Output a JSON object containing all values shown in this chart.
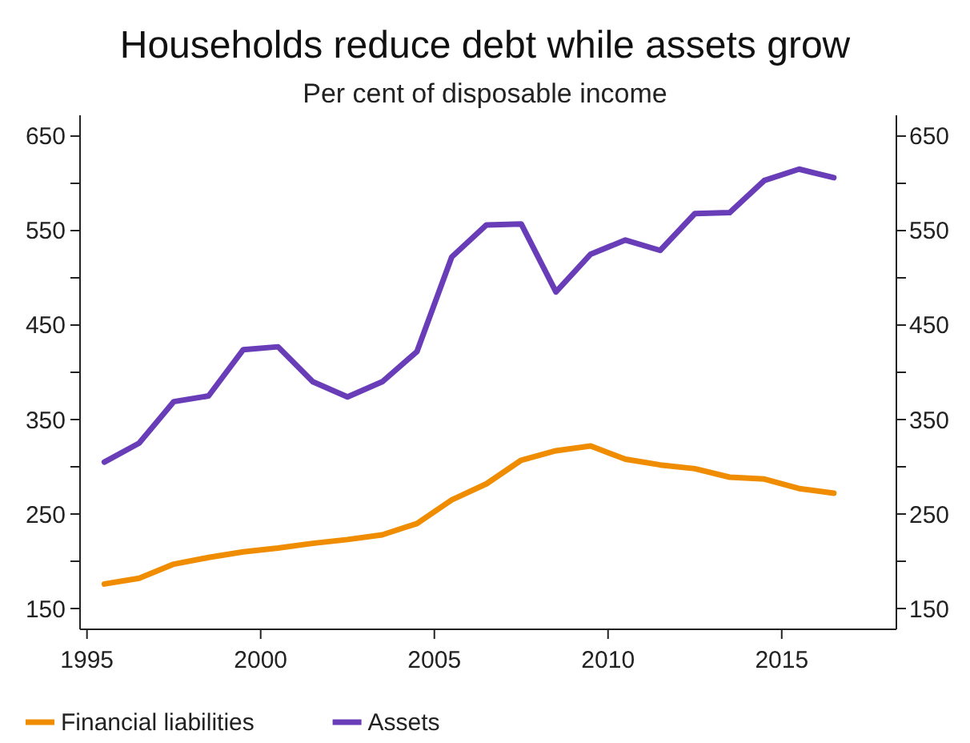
{
  "chart_data": {
    "type": "line",
    "title": "Households reduce debt while assets grow",
    "subtitle": "Per cent of disposable income",
    "x": [
      1995.5,
      1996.5,
      1997.5,
      1998.5,
      1999.5,
      2000.5,
      2001.5,
      2002.5,
      2003.5,
      2004.5,
      2005.5,
      2006.5,
      2007.5,
      2008.5,
      2009.5,
      2010.5,
      2011.5,
      2012.5,
      2013.5,
      2014.5,
      2015.5,
      2016.5
    ],
    "series": [
      {
        "name": "Financial liabilities",
        "color": "#ef8c00",
        "values": [
          176,
          182,
          197,
          204,
          210,
          214,
          219,
          223,
          228,
          240,
          265,
          282,
          307,
          317,
          322,
          308,
          302,
          298,
          289,
          287,
          277,
          272
        ]
      },
      {
        "name": "Assets",
        "color": "#6a3db8",
        "values": [
          305,
          325,
          369,
          375,
          424,
          427,
          390,
          374,
          390,
          422,
          522,
          556,
          557,
          485,
          525,
          540,
          529,
          568,
          569,
          603,
          615,
          606
        ]
      }
    ],
    "xlim": [
      1994.8,
      2018.3
    ],
    "xticks": [
      1995,
      2000,
      2005,
      2010,
      2015
    ],
    "ylim": [
      128,
      672
    ],
    "yticks": [
      150,
      {
        "value": 200,
        "label": null
      },
      250,
      {
        "value": 300,
        "label": null
      },
      350,
      {
        "value": 400,
        "label": null
      },
      450,
      {
        "value": 500,
        "label": null
      },
      550,
      {
        "value": 600,
        "label": null
      },
      650
    ],
    "y2lim": [
      128,
      672
    ],
    "y2ticks": [
      150,
      {
        "value": 200,
        "label": null
      },
      250,
      {
        "value": 300,
        "label": null
      },
      350,
      {
        "value": 400,
        "label": null
      },
      450,
      {
        "value": 500,
        "label": null
      },
      550,
      {
        "value": 600,
        "label": null
      },
      650
    ],
    "grid": false,
    "legend": "bottom left",
    "line_style": "solid",
    "marker": "none"
  }
}
